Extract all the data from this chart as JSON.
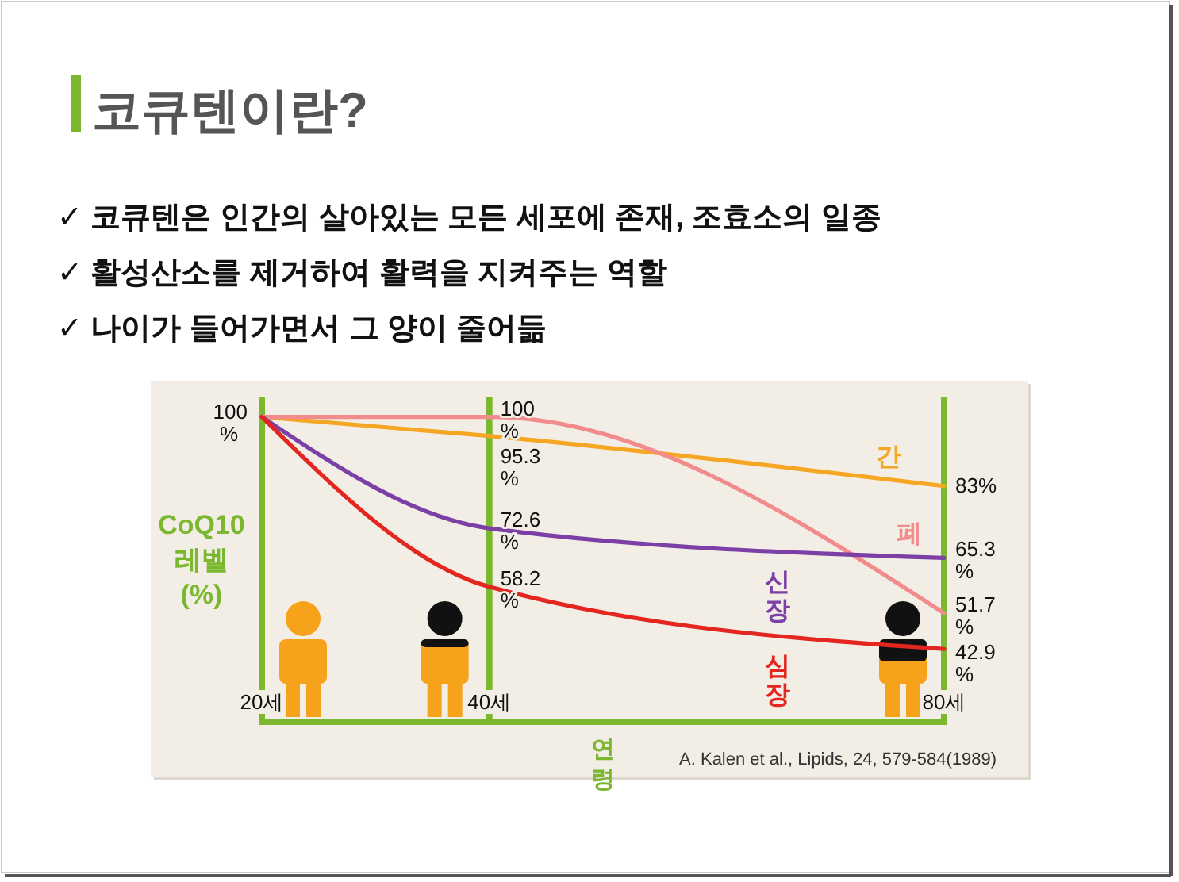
{
  "chart_data": {
    "type": "line",
    "title": "코큐텐이란?",
    "subtitle": "✓ 코큐텐은 인간의 살아있는 모든 세포에 존재, 조효소의 일종\n✓ 활성산소를 제거하여 활력을 지켜주는 역할\n✓ 나이가 들어가면서 그 양이 줄어듦",
    "xlabel": "연령",
    "ylabel": "CoQ10 레벨 (%)",
    "x": [
      20,
      40,
      80
    ],
    "xlim": [
      20,
      80
    ],
    "xticks": [
      {
        "value": 20,
        "label": "20세"
      },
      {
        "value": 40,
        "label": "40세"
      },
      {
        "value": 80,
        "label": "80세"
      }
    ],
    "ylim": [
      25,
      105
    ],
    "tick_labels": "x",
    "line_style": "solid",
    "ref_lines": [
      {
        "axis": "x",
        "value": 20,
        "color": "#7cb82f"
      },
      {
        "axis": "x",
        "value": 40,
        "color": "#7cb82f"
      },
      {
        "axis": "x",
        "value": 80,
        "color": "#7cb82f"
      }
    ],
    "series": [
      {
        "name": "간",
        "color": "#f5a623",
        "values": [
          100,
          95.3,
          83
        ],
        "value_labels": [
          null,
          "95.3 %",
          "83%"
        ]
      },
      {
        "name": "폐",
        "color": "#f28b8b",
        "values": [
          100,
          100,
          51.7
        ],
        "value_labels": [
          null,
          "100 %",
          "51.7 %"
        ]
      },
      {
        "name": "신장",
        "color": "#7b3fa5",
        "values": [
          100,
          72.6,
          65.3
        ],
        "value_labels": [
          null,
          "72.6 %",
          "65.3 %"
        ]
      },
      {
        "name": "심장",
        "color": "#e3261f",
        "values": [
          100,
          58.2,
          42.9
        ],
        "value_labels": [
          null,
          "58.2 %",
          "42.9 %"
        ]
      }
    ],
    "annotations": [
      {
        "text": "100 %",
        "x": 20,
        "y": 100
      },
      "A. Kalen et al., Lipids, 24, 579-584(1989)"
    ]
  }
}
